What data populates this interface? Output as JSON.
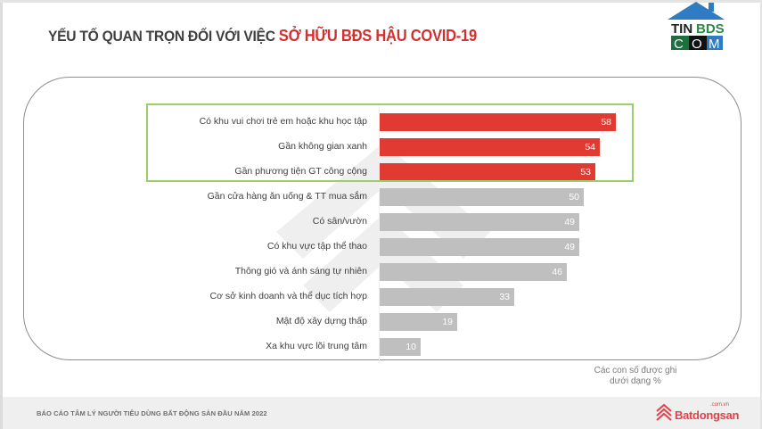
{
  "header": {
    "title_part1": "YẾU TỐ QUAN TRỌN ĐỐI VỚI VIỆC ",
    "title_part2": "SỞ HỮU BĐS HẬU COVID-19",
    "logo": {
      "line1_a": "TIN",
      "line1_b": "BDS",
      "line2_a": "C",
      "line2_b": "O",
      "line2_c": "M"
    }
  },
  "colors": {
    "highlight_bar": "#e03a32",
    "normal_bar": "#bfbfbf",
    "highlight_box": "#9ccf6b",
    "title_accent": "#d42f2f",
    "title_text": "#3f3f3f"
  },
  "chart_data": {
    "type": "bar",
    "orientation": "horizontal",
    "title": "YẾU TỐ QUAN TRỌN ĐỐI VỚI VIỆC SỞ HỮU BĐS HẬU COVID-19",
    "xlabel": "",
    "ylabel": "",
    "unit": "%",
    "grid": false,
    "categories": [
      "Có khu vui chơi trẻ em hoặc khu học tập",
      "Gần không gian xanh",
      "Gần phương tiện GT công cộng",
      "Gần cửa hàng ăn uống & TT mua sắm",
      "Có sân/vườn",
      "Có khu vực tập thể thao",
      "Thông gió và ánh sáng tự nhiên",
      "Cơ sở kinh doanh và thể dục tích hợp",
      "Mật độ xây dựng thấp",
      "Xa khu vực lõi trung tâm"
    ],
    "values": [
      58,
      54,
      53,
      50,
      49,
      49,
      46,
      33,
      19,
      10
    ],
    "highlighted": [
      true,
      true,
      true,
      false,
      false,
      false,
      false,
      false,
      false,
      false
    ],
    "xlim": [
      0,
      60
    ]
  },
  "note": {
    "line1": "Các con số được ghi",
    "line2": "dưới dạng %"
  },
  "footer": {
    "report_title": "BÁO CÁO TÂM LÝ NGƯỜI TIÊU DÙNG BẤT ĐỘNG SẢN ĐẦU NĂM 2022",
    "brand_name": "Batdongsan",
    "brand_domain": ".com.vn"
  }
}
